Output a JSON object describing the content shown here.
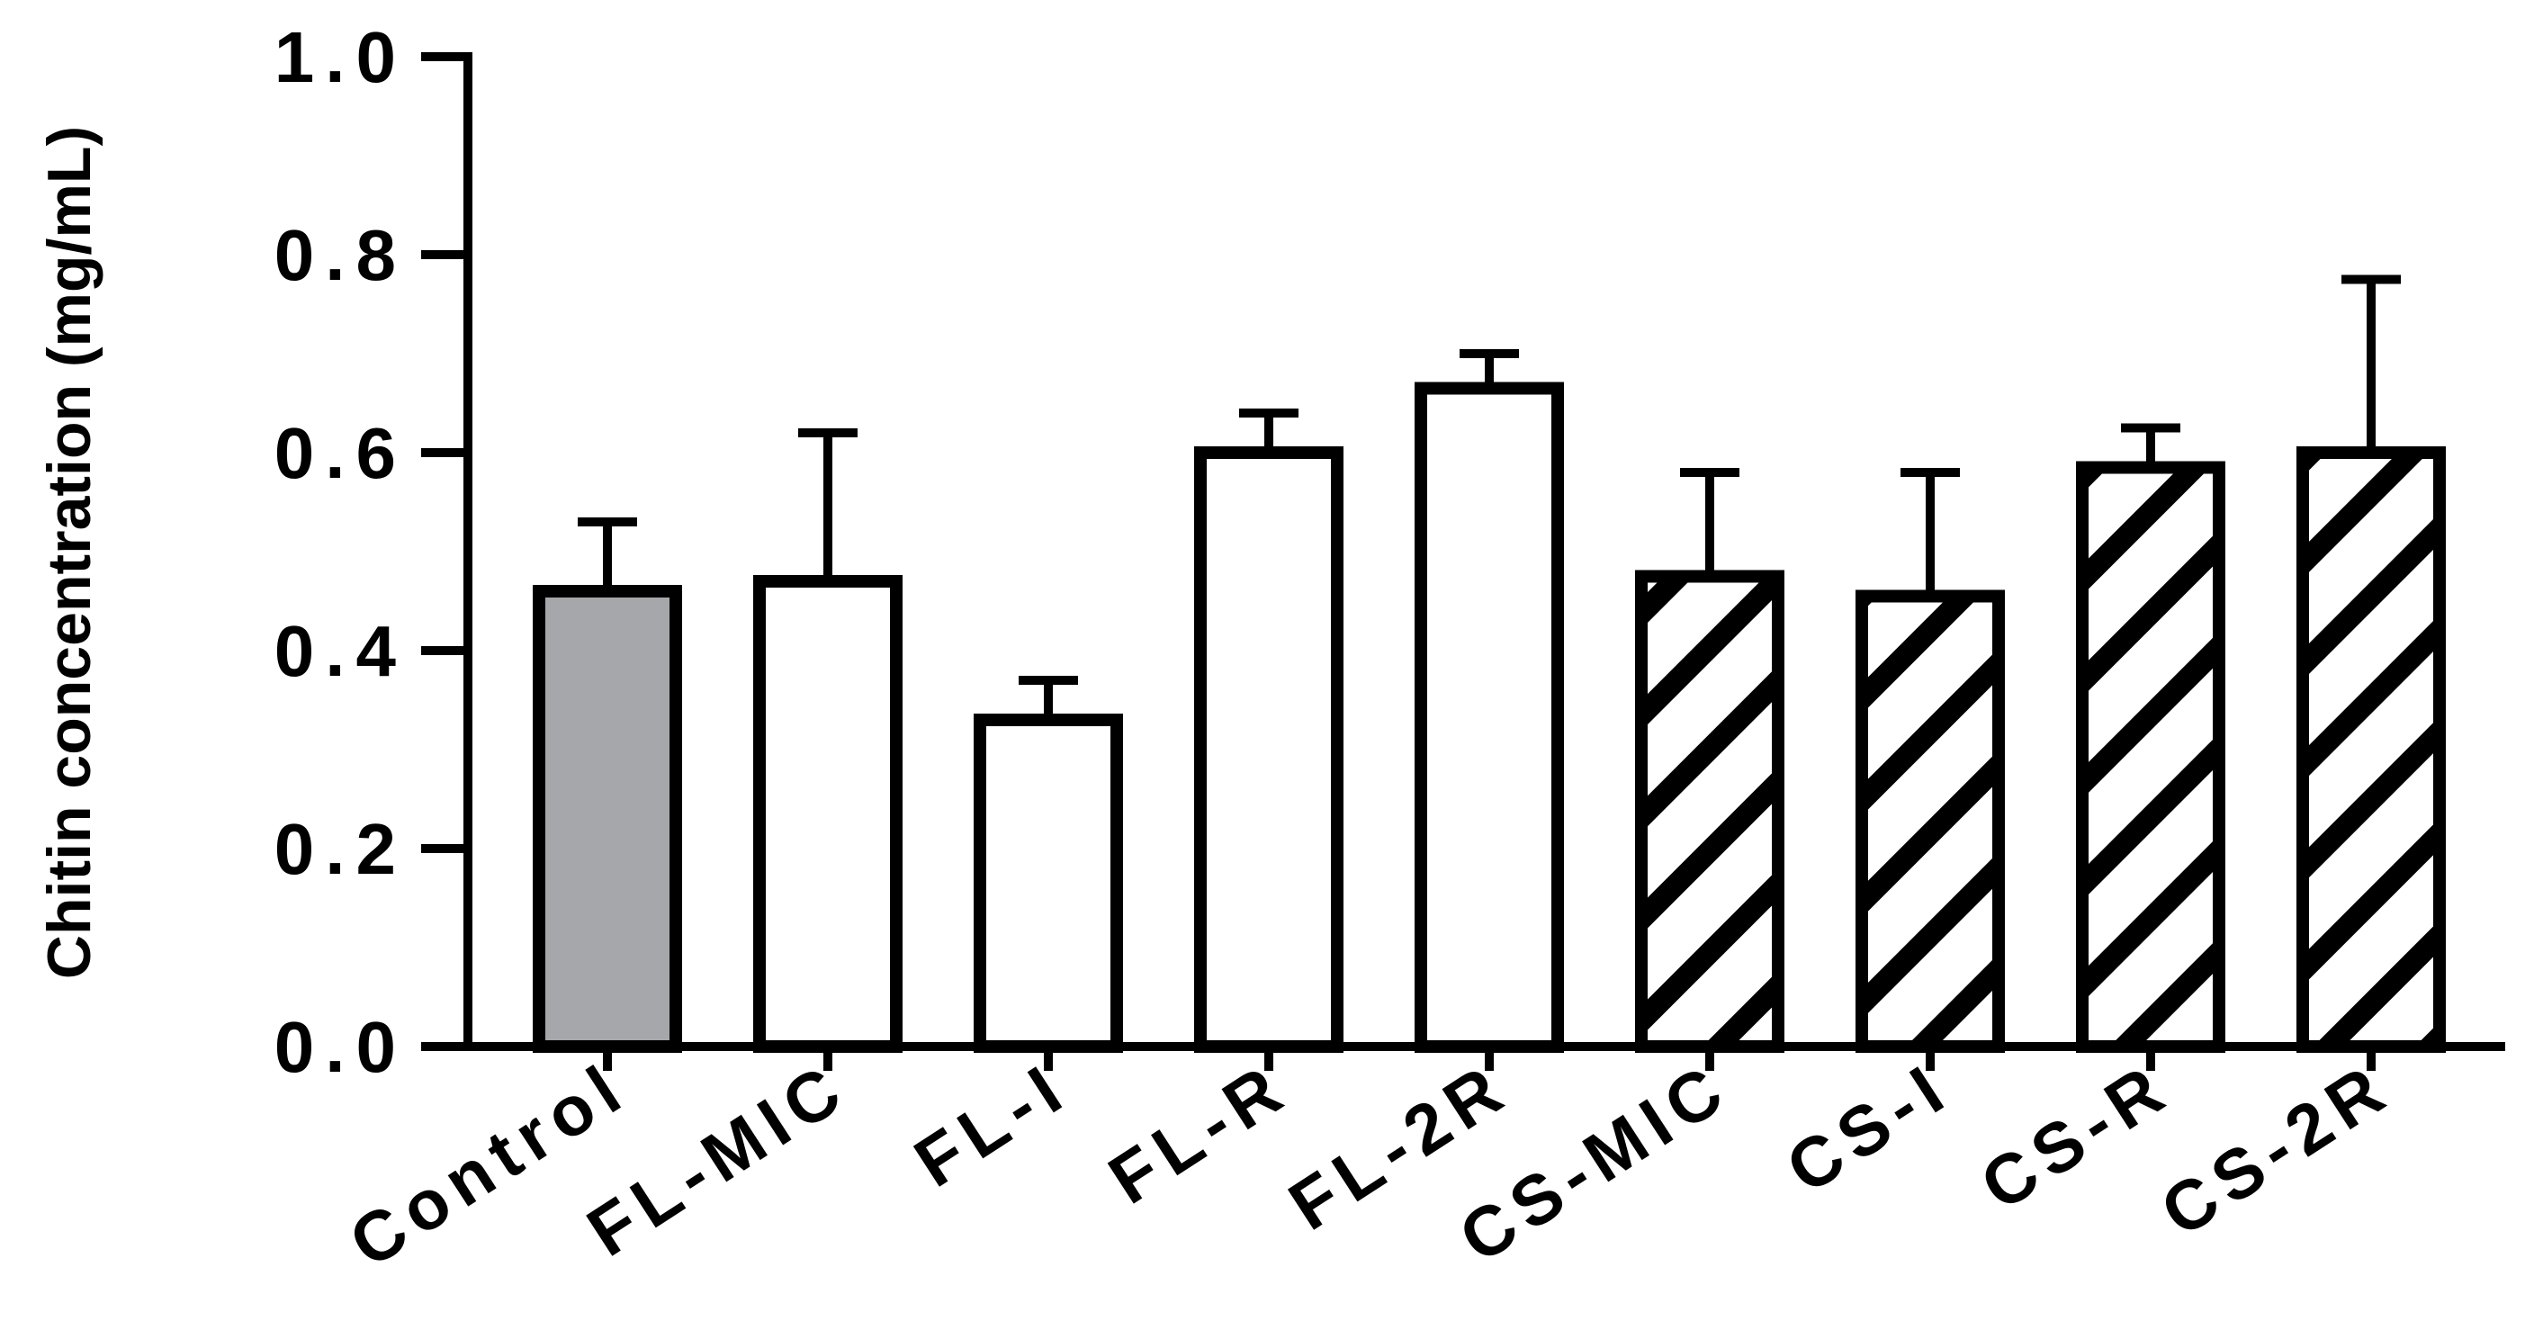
{
  "chart_data": {
    "type": "bar",
    "title": "",
    "xlabel": "",
    "ylabel": "Chitin concentration (mg/mL)",
    "ylim": [
      0,
      1.0
    ],
    "yticks": [
      "0.0",
      "0.2",
      "0.4",
      "0.6",
      "0.8",
      "1.0"
    ],
    "categories": [
      "Control",
      "FL-MIC",
      "FL-I",
      "FL-R",
      "FL-2R",
      "CS-MIC",
      "CS-I",
      "CS-R",
      "CS-2R"
    ],
    "values": [
      0.46,
      0.47,
      0.33,
      0.6,
      0.665,
      0.475,
      0.455,
      0.585,
      0.6
    ],
    "errors": [
      0.07,
      0.15,
      0.04,
      0.04,
      0.035,
      0.105,
      0.125,
      0.04,
      0.175
    ],
    "fills": [
      "gray",
      "white",
      "white",
      "white",
      "white",
      "hatched",
      "hatched",
      "hatched",
      "hatched"
    ],
    "colors": {
      "gray": "#a6a7aa",
      "white": "#ffffff",
      "stroke": "#000000"
    },
    "grid": false,
    "legend": "none"
  }
}
